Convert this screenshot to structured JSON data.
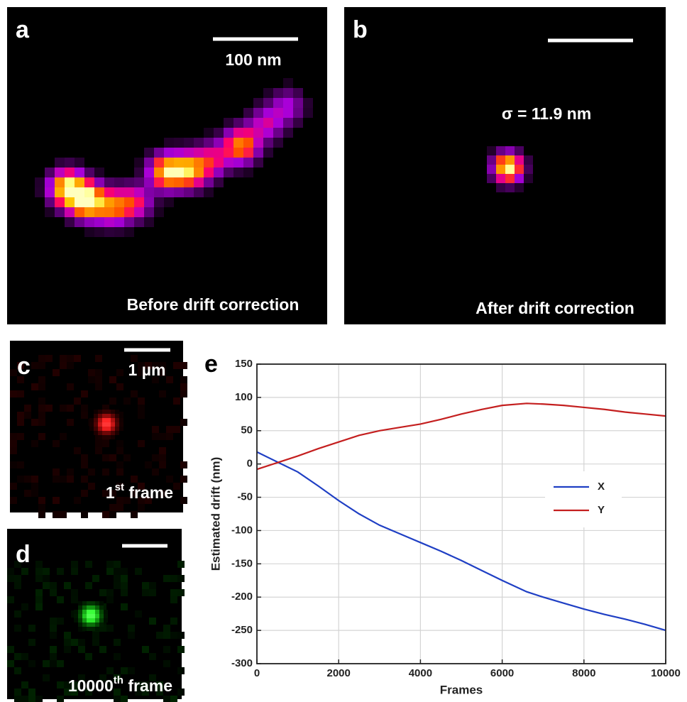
{
  "panels": {
    "a": {
      "label": "a",
      "scale": "100 nm",
      "caption": "Before drift correction"
    },
    "b": {
      "label": "b",
      "annotation": "σ = 11.9 nm",
      "caption": "After drift correction"
    },
    "c": {
      "label": "c",
      "scale": "1 µm",
      "caption_number": "1",
      "caption_sup": "st",
      "caption_rest": " frame"
    },
    "d": {
      "label": "d",
      "caption_number": "10000",
      "caption_sup": "th",
      "caption_rest": " frame"
    }
  },
  "chart_data": {
    "type": "line",
    "label": "e",
    "x_label": "Frames",
    "y_label": "Estimated drift (nm)",
    "x": [
      0,
      500,
      1000,
      1500,
      2000,
      2500,
      3000,
      3500,
      4000,
      4500,
      5000,
      5500,
      6000,
      6600,
      7000,
      7500,
      8000,
      8500,
      9000,
      9500,
      10000
    ],
    "series": [
      {
        "name": "X",
        "color": "#1f3fc4",
        "values": [
          18,
          3,
          -12,
          -33,
          -55,
          -75,
          -92,
          -105,
          -118,
          -131,
          -145,
          -160,
          -175,
          -192,
          -200,
          -209,
          -218,
          -226,
          -233,
          -241,
          -250
        ]
      },
      {
        "name": "Y",
        "color": "#c41f1f",
        "values": [
          -8,
          2,
          12,
          23,
          33,
          43,
          50,
          55,
          60,
          67,
          75,
          82,
          88,
          91,
          90,
          88,
          85,
          82,
          78,
          75,
          72
        ]
      }
    ],
    "xlim": [
      0,
      10000
    ],
    "xticks": [
      0,
      2000,
      4000,
      6000,
      8000,
      10000
    ],
    "ylim": [
      -300,
      150
    ],
    "yticks": [
      -300,
      -250,
      -200,
      -150,
      -100,
      -50,
      0,
      50,
      100,
      150
    ],
    "grid": true,
    "legend": "center right"
  }
}
